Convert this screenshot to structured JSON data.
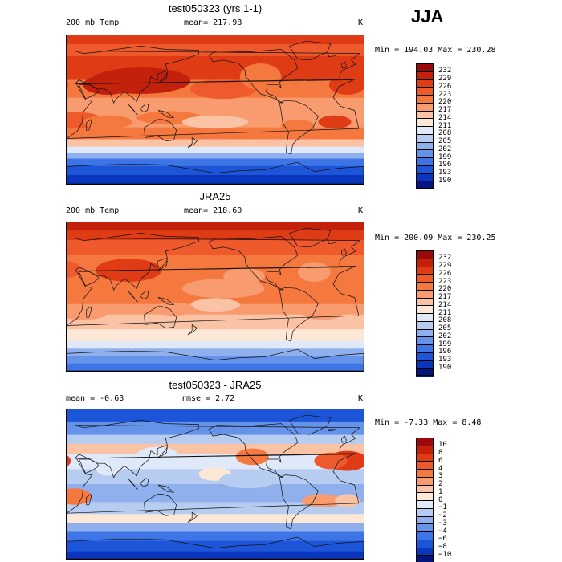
{
  "season": "JJA",
  "chart_data": [
    {
      "type": "heatmap",
      "title": "test050323 (yrs 1-1)",
      "variable": "200 mb Temp",
      "units": "K",
      "stat_text": "mean= 217.98",
      "mean": 217.98,
      "minmax_text": "Min = 194.03  Max = 230.28",
      "min": 194.03,
      "max": 230.28,
      "colorbar_levels": [
        "232",
        "229",
        "226",
        "223",
        "220",
        "217",
        "214",
        "211",
        "208",
        "205",
        "202",
        "199",
        "196",
        "193",
        "190"
      ],
      "colorbar_colors": [
        "#9b0a0a",
        "#c3210c",
        "#df3c15",
        "#ee5a2b",
        "#f5783e",
        "#f89b6e",
        "#fbc3a6",
        "#fde7d6",
        "#dfe9f9",
        "#b6ccf1",
        "#8fb0ec",
        "#6593ea",
        "#3d74e6",
        "#1d55d9",
        "#0a36bd",
        "#06157d"
      ],
      "field": "warm_nh_cold_poles"
    },
    {
      "type": "heatmap",
      "title": "JRA25",
      "variable": "200 mb Temp",
      "units": "K",
      "stat_text": "mean= 218.60",
      "mean": 218.6,
      "minmax_text": "Min = 200.09  Max = 230.25",
      "min": 200.09,
      "max": 230.25,
      "colorbar_levels": [
        "232",
        "229",
        "226",
        "223",
        "220",
        "217",
        "214",
        "211",
        "208",
        "205",
        "202",
        "199",
        "196",
        "193",
        "190"
      ],
      "colorbar_colors": [
        "#9b0a0a",
        "#c3210c",
        "#df3c15",
        "#ee5a2b",
        "#f5783e",
        "#f89b6e",
        "#fbc3a6",
        "#fde7d6",
        "#dfe9f9",
        "#b6ccf1",
        "#8fb0ec",
        "#6593ea",
        "#3d74e6",
        "#1d55d9",
        "#0a36bd",
        "#06157d"
      ],
      "field": "warm_nh"
    },
    {
      "type": "heatmap",
      "title": "test050323 - JRA25",
      "variable": "",
      "units": "K",
      "stat_text": "mean =   -0.63",
      "stat2_text": "rmse =    2.72",
      "mean": -0.63,
      "rmse": 2.72,
      "minmax_text": "Min =  -7.33  Max =    8.48",
      "min": -7.33,
      "max": 8.48,
      "colorbar_levels": [
        "10",
        "8",
        "6",
        "4",
        "3",
        "2",
        "1",
        "0",
        "−1",
        "−2",
        "−3",
        "−4",
        "−6",
        "−8",
        "−10"
      ],
      "colorbar_colors": [
        "#9b0a0a",
        "#c3210c",
        "#df3c15",
        "#ee5a2b",
        "#f5783e",
        "#f89b6e",
        "#fbc3a6",
        "#fde7d6",
        "#dfe9f9",
        "#b6ccf1",
        "#8fb0ec",
        "#6593ea",
        "#3d74e6",
        "#1d55d9",
        "#0a36bd",
        "#06157d"
      ],
      "field": "difference"
    }
  ]
}
